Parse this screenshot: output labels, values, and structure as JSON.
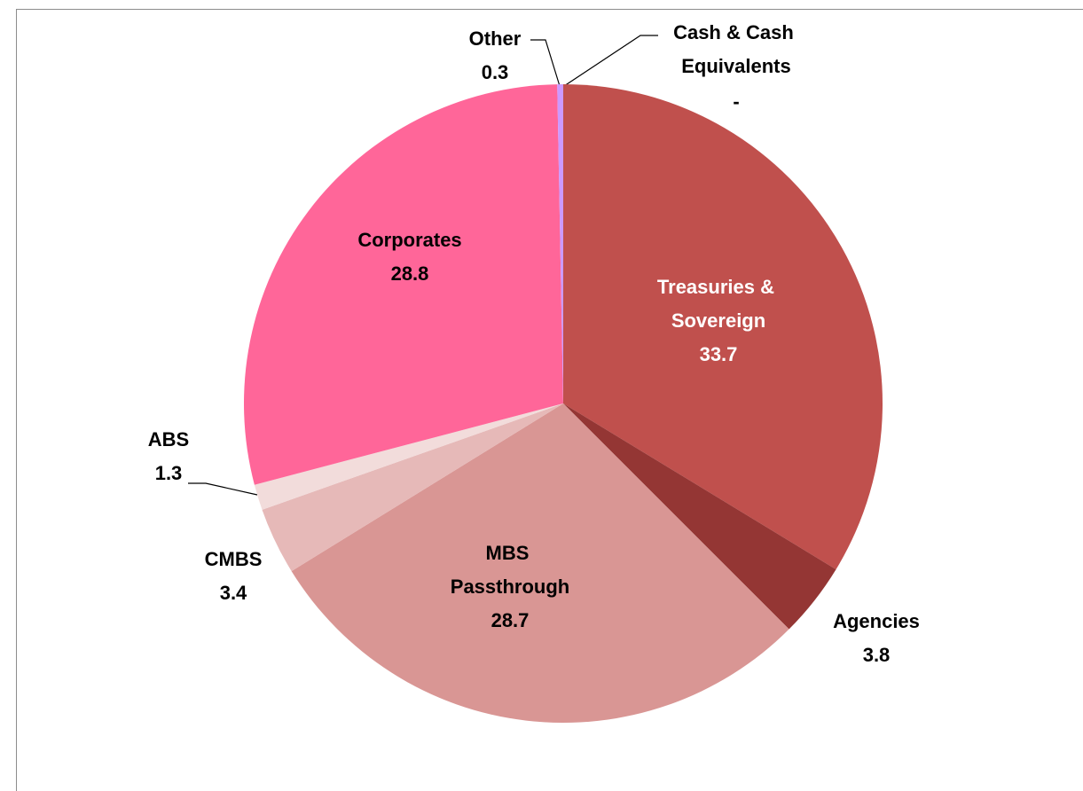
{
  "chart_data": {
    "type": "pie",
    "categories": [
      "Cash & Cash Equivalents",
      "Treasuries & Sovereign",
      "Agencies",
      "MBS Passthrough",
      "CMBS",
      "ABS",
      "Corporates",
      "Other"
    ],
    "values": [
      0,
      33.7,
      3.8,
      28.7,
      3.4,
      1.3,
      28.8,
      0.3
    ],
    "value_labels": [
      "-",
      "33.7",
      "3.8",
      "28.7",
      "3.4",
      "1.3",
      "28.8",
      "0.3"
    ],
    "colors": [
      "#8064a2",
      "#c0504d",
      "#943634",
      "#d99694",
      "#e6b9b8",
      "#f2dcdb",
      "#ff6699",
      "#cc99ff"
    ],
    "label_colors": [
      "#000000",
      "#ffffff",
      "#000000",
      "#000000",
      "#000000",
      "#000000",
      "#000000",
      "#000000"
    ]
  }
}
